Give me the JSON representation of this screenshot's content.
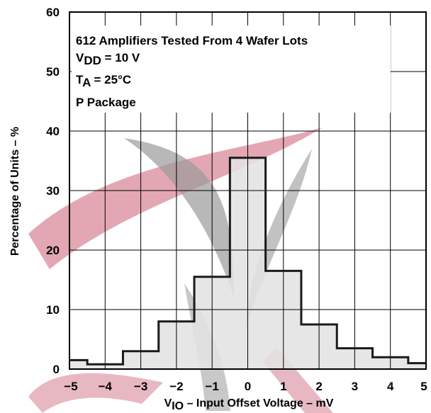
{
  "chart_data": {
    "type": "bar",
    "subtype": "histogram",
    "xlabel_parts": [
      "V",
      "IO",
      " – Input Offset Voltage – mV"
    ],
    "ylabel": "Percentage of Units – %",
    "x_ticks": [
      "−5",
      "−4",
      "−3",
      "−2",
      "−1",
      "0",
      "1",
      "2",
      "3",
      "4",
      "5"
    ],
    "y_ticks": [
      "0",
      "10",
      "20",
      "30",
      "40",
      "50",
      "60"
    ],
    "xlim": [
      -5,
      5
    ],
    "ylim": [
      0,
      60
    ],
    "grid": true,
    "bin_width": 0.5,
    "bins": [
      {
        "x0": -5.0,
        "x1": -4.5,
        "value": 1.5
      },
      {
        "x0": -4.5,
        "x1": -4.0,
        "value": 0.8
      },
      {
        "x0": -4.0,
        "x1": -3.5,
        "value": 0.8
      },
      {
        "x0": -3.5,
        "x1": -3.0,
        "value": 3.0
      },
      {
        "x0": -3.0,
        "x1": -2.5,
        "value": 3.0
      },
      {
        "x0": -2.5,
        "x1": -2.0,
        "value": 8.0
      },
      {
        "x0": -2.0,
        "x1": -1.5,
        "value": 8.0
      },
      {
        "x0": -1.5,
        "x1": -1.0,
        "value": 15.5
      },
      {
        "x0": -1.0,
        "x1": -0.5,
        "value": 15.5
      },
      {
        "x0": -0.5,
        "x1": 0.0,
        "value": 35.5
      },
      {
        "x0": 0.0,
        "x1": 0.5,
        "value": 35.5
      },
      {
        "x0": 0.5,
        "x1": 1.0,
        "value": 16.5
      },
      {
        "x0": 1.0,
        "x1": 1.5,
        "value": 16.5
      },
      {
        "x0": 1.5,
        "x1": 2.0,
        "value": 7.5
      },
      {
        "x0": 2.0,
        "x1": 2.5,
        "value": 7.5
      },
      {
        "x0": 2.5,
        "x1": 3.0,
        "value": 3.5
      },
      {
        "x0": 3.0,
        "x1": 3.5,
        "value": 3.5
      },
      {
        "x0": 3.5,
        "x1": 4.0,
        "value": 2.0
      },
      {
        "x0": 4.0,
        "x1": 4.5,
        "value": 2.0
      },
      {
        "x0": 4.5,
        "x1": 5.0,
        "value": 1.0
      }
    ],
    "annotations": [
      {
        "parts": [
          {
            "t": "612 Amplifiers Tested From 4 Wafer Lots"
          }
        ]
      },
      {
        "parts": [
          {
            "t": "V"
          },
          {
            "t": "DD",
            "sub": true
          },
          {
            "t": " = 10 V"
          }
        ]
      },
      {
        "parts": [
          {
            "t": "T"
          },
          {
            "t": "A",
            "sub": true
          },
          {
            "t": " = 25°C"
          }
        ]
      },
      {
        "parts": [
          {
            "t": "P Package"
          }
        ]
      }
    ],
    "colors": {
      "fill": "#e3e3e3",
      "outline": "#1a1a1a",
      "grid": "#000000",
      "watermark_red": "#d9899a",
      "watermark_gray": "#9a9a9a"
    }
  }
}
